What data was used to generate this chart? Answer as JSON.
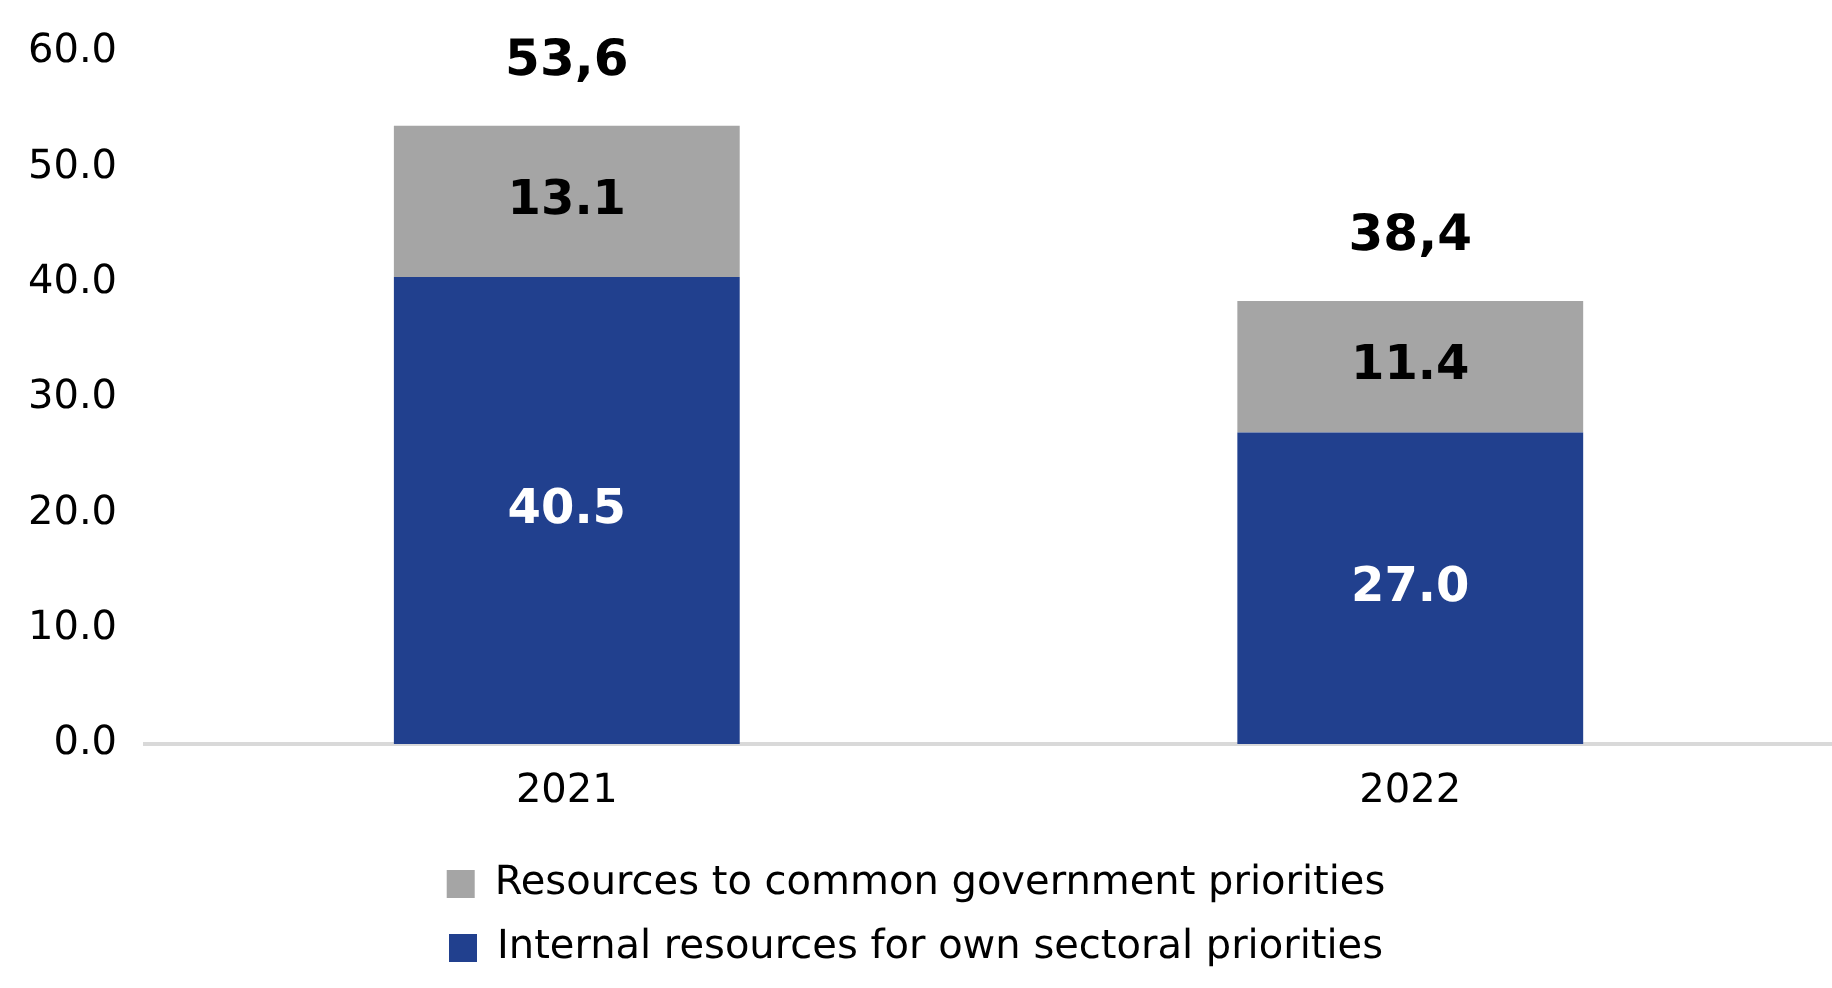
{
  "chart_data": {
    "type": "bar",
    "stacked": true,
    "categories": [
      "2021",
      "2022"
    ],
    "series": [
      {
        "name": "Internal resources for own sectoral priorities",
        "color": "#21408e",
        "values": [
          40.5,
          27.0
        ],
        "value_labels": [
          "40.5",
          "27.0"
        ]
      },
      {
        "name": "Resources to common government priorities",
        "color": "#a5a5a5",
        "values": [
          13.1,
          11.4
        ],
        "value_labels": [
          "13.1",
          "11.4"
        ]
      }
    ],
    "totals": [
      "53,6",
      "38,4"
    ],
    "ylim": [
      0,
      60
    ],
    "yticks": [
      {
        "value": 0,
        "label": "0.0"
      },
      {
        "value": 10,
        "label": "10.0"
      },
      {
        "value": 20,
        "label": "20.0"
      },
      {
        "value": 30,
        "label": "30.0"
      },
      {
        "value": 40,
        "label": "40.0"
      },
      {
        "value": 50,
        "label": "50.0"
      },
      {
        "value": 60,
        "label": "60.0"
      }
    ],
    "grid": false,
    "legend": "bottom"
  }
}
